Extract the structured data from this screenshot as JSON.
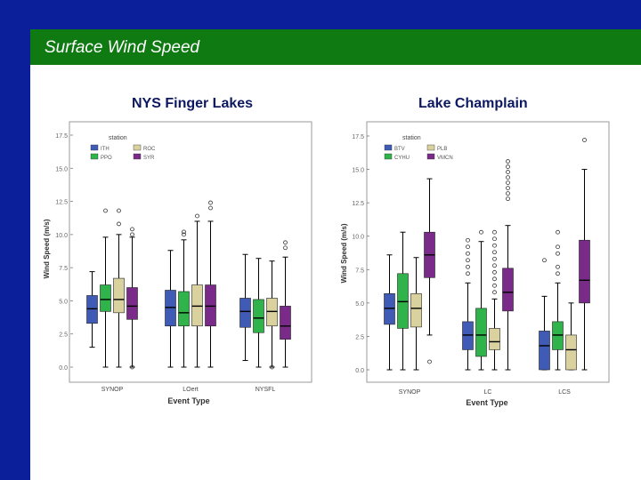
{
  "slide": {
    "title": "Surface Wind Speed",
    "colors": {
      "rail": "#0b1f9a",
      "title_bar": "#0f7a12",
      "title_text": "#ffffff"
    }
  },
  "chart_data": [
    {
      "type": "box",
      "title": "NYS Finger Lakes",
      "xlabel": "Event Type",
      "ylabel": "Wind Speed (m/s)",
      "ylim": [
        0,
        17.5
      ],
      "yticks": [
        "0.0",
        "2.5",
        "5.0",
        "7.5",
        "10.0",
        "12.5",
        "15.0",
        "17.5"
      ],
      "categories": [
        "SYNOP",
        "LOert",
        "NYSFL"
      ],
      "legend": {
        "title": "station",
        "position": "top-left",
        "entries": [
          {
            "name": "ITH",
            "color": "#3f5bb5"
          },
          {
            "name": "ROC",
            "color": "#d9d29f"
          },
          {
            "name": "PPO",
            "color": "#2fb34a"
          },
          {
            "name": "SYR",
            "color": "#7a2a88"
          }
        ]
      },
      "series": [
        {
          "name": "ITH",
          "color": "#3f5bb5",
          "boxes": [
            {
              "min": 1.5,
              "q1": 3.3,
              "median": 4.4,
              "q3": 5.4,
              "max": 7.2,
              "outliers": []
            },
            {
              "min": 0.0,
              "q1": 3.1,
              "median": 4.5,
              "q3": 5.8,
              "max": 8.8,
              "outliers": []
            },
            {
              "min": 0.5,
              "q1": 3.0,
              "median": 4.2,
              "q3": 5.2,
              "max": 8.5,
              "outliers": []
            }
          ]
        },
        {
          "name": "PPO",
          "color": "#2fb34a",
          "boxes": [
            {
              "min": 0.0,
              "q1": 4.2,
              "median": 5.1,
              "q3": 6.2,
              "max": 9.8,
              "outliers": [
                11.8
              ]
            },
            {
              "min": 0.0,
              "q1": 3.1,
              "median": 4.1,
              "q3": 5.7,
              "max": 9.6,
              "outliers": [
                10.0,
                10.2
              ]
            },
            {
              "min": 0.0,
              "q1": 2.6,
              "median": 3.7,
              "q3": 5.1,
              "max": 8.2,
              "outliers": []
            }
          ]
        },
        {
          "name": "ROC",
          "color": "#d9d29f",
          "boxes": [
            {
              "min": 0.0,
              "q1": 4.1,
              "median": 5.1,
              "q3": 6.7,
              "max": 10.0,
              "outliers": [
                10.8,
                11.8
              ]
            },
            {
              "min": 0.0,
              "q1": 3.1,
              "median": 4.6,
              "q3": 6.2,
              "max": 11.0,
              "outliers": [
                11.4
              ]
            },
            {
              "min": 0.0,
              "q1": 3.1,
              "median": 4.2,
              "q3": 5.2,
              "max": 8.0,
              "outliers": [
                0.0
              ]
            }
          ]
        },
        {
          "name": "SYR",
          "color": "#7a2a88",
          "boxes": [
            {
              "min": 0.0,
              "q1": 3.6,
              "median": 4.6,
              "q3": 6.0,
              "max": 9.8,
              "outliers": [
                0.0,
                10.0,
                10.4
              ]
            },
            {
              "min": 0.0,
              "q1": 3.1,
              "median": 4.6,
              "q3": 6.2,
              "max": 11.0,
              "outliers": [
                12.0,
                12.4
              ]
            },
            {
              "min": 0.0,
              "q1": 2.1,
              "median": 3.1,
              "q3": 4.6,
              "max": 8.3,
              "outliers": [
                9.0,
                9.4
              ]
            }
          ]
        }
      ]
    },
    {
      "type": "box",
      "title": "Lake Champlain",
      "xlabel": "Event Type",
      "ylabel": "Wind Speed (m/s)",
      "ylim": [
        0,
        17.5
      ],
      "yticks": [
        "0.0",
        "2.5",
        "5.0",
        "7.5",
        "10.0",
        "12.5",
        "15.0",
        "17.5"
      ],
      "categories": [
        "SYNOP",
        "LC",
        "LCS"
      ],
      "legend": {
        "title": "station",
        "position": "top-left",
        "entries": [
          {
            "name": "BTV",
            "color": "#3f5bb5"
          },
          {
            "name": "PLB",
            "color": "#d9d29f"
          },
          {
            "name": "CYHU",
            "color": "#2fb34a"
          },
          {
            "name": "VMCN",
            "color": "#7a2a88"
          }
        ]
      },
      "series": [
        {
          "name": "BTV",
          "color": "#3f5bb5",
          "boxes": [
            {
              "min": 0.0,
              "q1": 3.4,
              "median": 4.6,
              "q3": 5.7,
              "max": 8.6,
              "outliers": []
            },
            {
              "min": 0.0,
              "q1": 1.5,
              "median": 2.6,
              "q3": 3.6,
              "max": 6.5,
              "outliers": [
                7.2,
                7.7,
                8.2,
                8.7,
                9.2,
                9.7
              ]
            },
            {
              "min": 0.0,
              "q1": 0.0,
              "median": 1.8,
              "q3": 2.9,
              "max": 5.5,
              "outliers": [
                8.2
              ]
            }
          ]
        },
        {
          "name": "CYHU",
          "color": "#2fb34a",
          "boxes": [
            {
              "min": 0.0,
              "q1": 3.1,
              "median": 5.1,
              "q3": 7.2,
              "max": 10.3,
              "outliers": []
            },
            {
              "min": 0.0,
              "q1": 1.0,
              "median": 2.6,
              "q3": 4.6,
              "max": 9.6,
              "outliers": [
                10.3
              ]
            },
            {
              "min": 0.0,
              "q1": 1.5,
              "median": 2.6,
              "q3": 3.6,
              "max": 6.5,
              "outliers": [
                7.2,
                7.7,
                8.7,
                9.2,
                10.3
              ]
            }
          ]
        },
        {
          "name": "PLB",
          "color": "#d9d29f",
          "boxes": [
            {
              "min": 0.0,
              "q1": 3.2,
              "median": 4.6,
              "q3": 5.7,
              "max": 8.4,
              "outliers": []
            },
            {
              "min": 0.0,
              "q1": 1.5,
              "median": 2.1,
              "q3": 3.1,
              "max": 5.3,
              "outliers": [
                5.8,
                6.3,
                6.8,
                7.3,
                7.8,
                8.3,
                8.8,
                9.3,
                9.8,
                10.3
              ]
            },
            {
              "min": 0.0,
              "q1": 0.0,
              "median": 1.5,
              "q3": 2.6,
              "max": 5.0,
              "outliers": []
            }
          ]
        },
        {
          "name": "VMCN",
          "color": "#7a2a88",
          "boxes": [
            {
              "min": 2.6,
              "q1": 6.9,
              "median": 8.6,
              "q3": 10.3,
              "max": 14.3,
              "outliers": [
                0.6
              ]
            },
            {
              "min": 0.0,
              "q1": 4.4,
              "median": 5.8,
              "q3": 7.6,
              "max": 10.8,
              "outliers": [
                12.8,
                13.2,
                13.6,
                14.0,
                14.4,
                14.8,
                15.2,
                15.6
              ]
            },
            {
              "min": 0.0,
              "q1": 5.0,
              "median": 6.7,
              "q3": 9.7,
              "max": 15.0,
              "outliers": [
                17.2
              ]
            }
          ]
        }
      ]
    }
  ]
}
